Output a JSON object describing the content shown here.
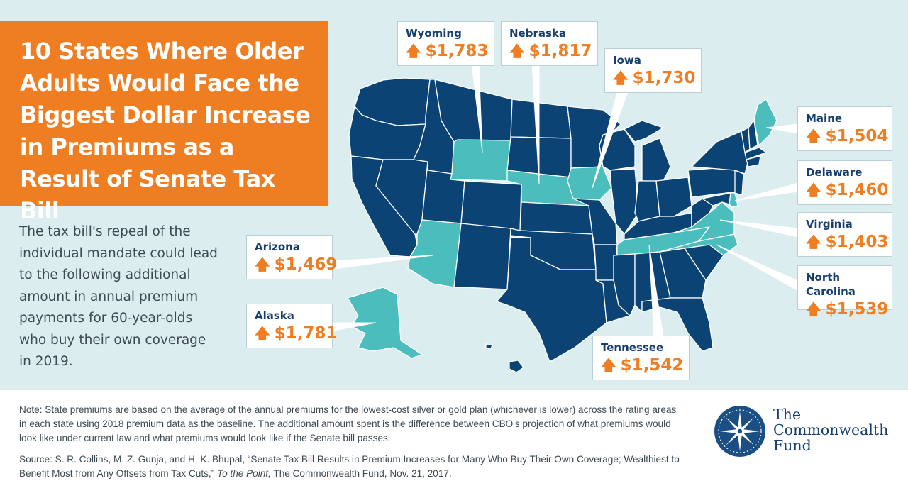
{
  "title": "10 States Where Older Adults Would Face the Biggest Dollar Increase in Premiums as a Result of Senate Tax Bill",
  "intro": "The tax bill's repeal of the individual mandate could lead to the following additional amount in annual premium payments for 60-year-olds who buy their own coverage in 2019.",
  "colors": {
    "highlight_state": "#4bbdbd",
    "other_state": "#0b4375",
    "state_border": "#ffffff",
    "increase_amount": "#ef7d22",
    "state_name": "#163f6e",
    "background": "#dcedf0"
  },
  "arrow_icon": "up-arrow-icon",
  "callouts": [
    {
      "state": "Wyoming",
      "amount": "$1,783"
    },
    {
      "state": "Nebraska",
      "amount": "$1,817"
    },
    {
      "state": "Iowa",
      "amount": "$1,730"
    },
    {
      "state": "Maine",
      "amount": "$1,504"
    },
    {
      "state": "Delaware",
      "amount": "$1,460"
    },
    {
      "state": "Virginia",
      "amount": "$1,403"
    },
    {
      "state": "North Carolina",
      "amount": "$1,539"
    },
    {
      "state": "Tennessee",
      "amount": "$1,542"
    },
    {
      "state": "Arizona",
      "amount": "$1,469"
    },
    {
      "state": "Alaska",
      "amount": "$1,781"
    }
  ],
  "note": "Note: State premiums are based on the average of the annual premiums for the lowest-cost silver or gold plan (whichever is lower) across the rating areas in each state using 2018 premium data as the baseline. The additional amount spent is the difference between CBO's projection of what premiums would look like under current law and what premiums would look like if the Senate bill passes.",
  "source": {
    "before_italic": "Source: S. R. Collins, M. Z. Gunja, and H. K. Bhupal, “Senate Tax Bill Results in Premium Increases for Many Who Buy Their Own Coverage; Wealthiest to Benefit Most from Any Offsets from Tax Cuts,” ",
    "italic": "To the Point,",
    "after_italic": " The Commonwealth Fund, Nov. 21, 2017."
  },
  "logo": {
    "line1": "The",
    "line2": "Commonwealth",
    "line3": "Fund"
  }
}
